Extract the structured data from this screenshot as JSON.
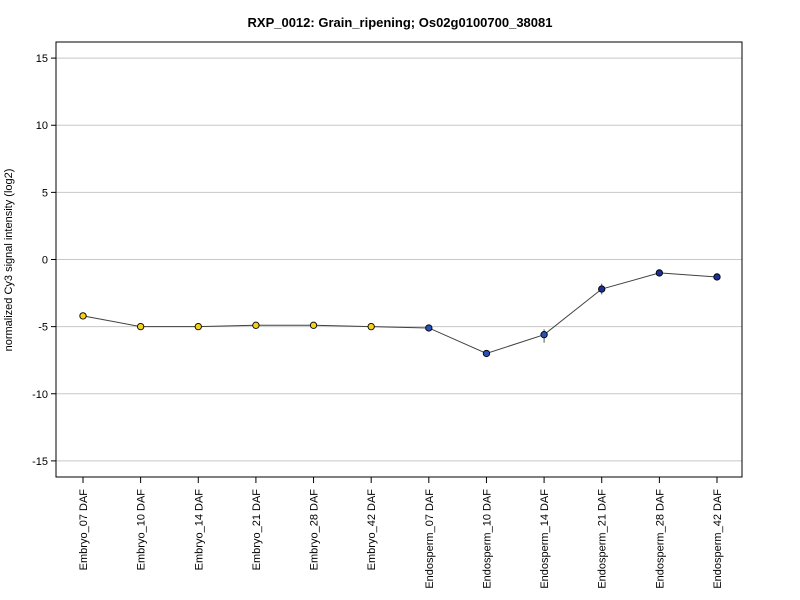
{
  "chart_data": {
    "type": "line",
    "title": "RXP_0012: Grain_ripening; Os02g0100700_38081",
    "xlabel": "",
    "ylabel": "normalized Cy3 signal intensity (log2)",
    "ylim": [
      -16.2,
      16.2
    ],
    "yticks": [
      15,
      10,
      5,
      0,
      -5,
      -10,
      -15
    ],
    "ytick_labels": [
      "15",
      "10",
      "5",
      "0",
      "-5",
      "-10",
      "-15"
    ],
    "grid": true,
    "categories": [
      "Embryo_07 DAF",
      "Embryo_10 DAF",
      "Embryo_14 DAF",
      "Embryo_21 DAF",
      "Embryo_28 DAF",
      "Embryo_42 DAF",
      "Endosperm_07 DAF",
      "Endosperm_10 DAF",
      "Endosperm_14 DAF",
      "Endosperm_21 DAF",
      "Endosperm_28 DAF",
      "Endosperm_42 DAF"
    ],
    "values": [
      -4.2,
      -5.0,
      -5.0,
      -4.9,
      -4.9,
      -5.0,
      -5.1,
      -7.0,
      -5.6,
      -2.2,
      -1.0,
      -1.3
    ],
    "error_low": [
      -4.2,
      -5.0,
      -5.0,
      -4.9,
      -4.9,
      -5.0,
      -5.3,
      -7.2,
      -6.2,
      -2.6,
      -1.0,
      -1.3
    ],
    "error_high": [
      -4.2,
      -5.0,
      -5.0,
      -4.9,
      -4.9,
      -5.0,
      -4.9,
      -6.8,
      -5.2,
      -1.8,
      -1.0,
      -1.3
    ],
    "point_colors": [
      "#f2d21b",
      "#f2d21b",
      "#f2d21b",
      "#f2d21b",
      "#f2d21b",
      "#f2d21b",
      "#2a50b8",
      "#2a50b8",
      "#2a50b8",
      "#1b2f9a",
      "#1b2f9a",
      "#1b2f9a"
    ],
    "line_color": "#404040",
    "grid_color": "#c8c8c8"
  }
}
